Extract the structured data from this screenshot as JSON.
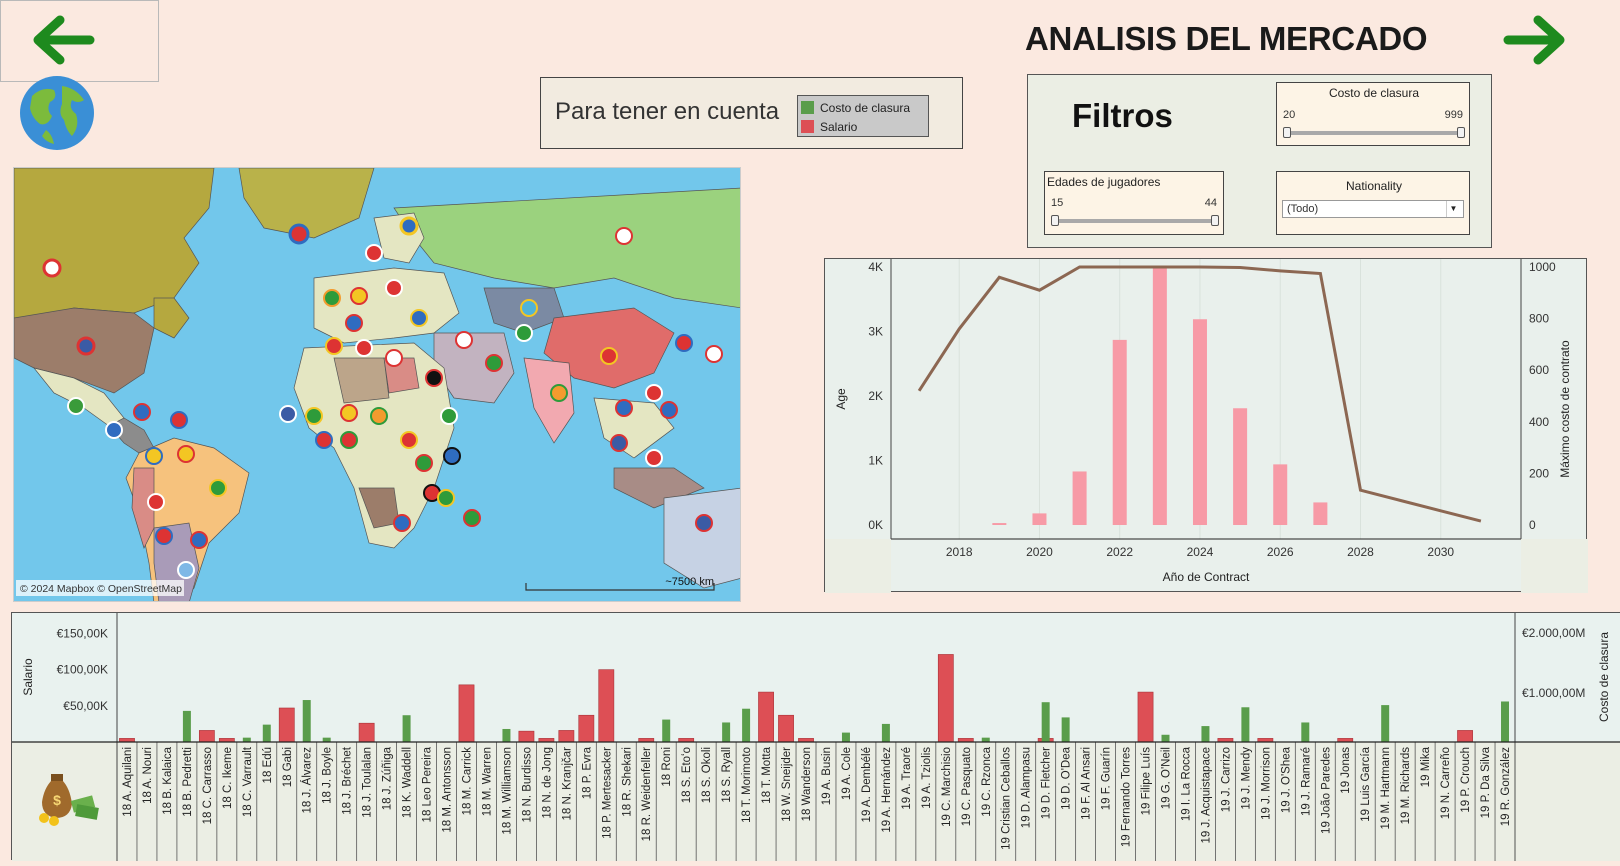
{
  "page": {
    "title": "ANALISIS DEL MERCADO",
    "back_icon": "arrow-left-icon",
    "forward_icon": "arrow-right-icon",
    "globe_icon": "globe-icon",
    "colors": {
      "green": "#5a9d4b",
      "red": "#dd4f55",
      "pink": "#f79aa6",
      "line": "#8c6752",
      "arrow": "#1e8a1e"
    }
  },
  "legend": {
    "title": "Para tener en cuenta",
    "items": [
      {
        "label": "Costo de clasura",
        "color": "#5a9d4b"
      },
      {
        "label": "Salario",
        "color": "#dd4f55"
      }
    ]
  },
  "filters": {
    "title": "Filtros",
    "costo": {
      "label": "Costo de clasura",
      "min": "20",
      "max": "999"
    },
    "edades": {
      "label": "Edades de jugadores",
      "min": "15",
      "max": "44"
    },
    "nationality": {
      "label": "Nationality",
      "value": "(Todo)"
    }
  },
  "map": {
    "attribution": "© 2024 Mapbox © OpenStreetMap",
    "scale": "~7500 km"
  },
  "chart_data": [
    {
      "type": "bar",
      "xlabel": "Año de Contract",
      "ylabel": "Age",
      "y2label": "Máximo costo de contrato",
      "x_ticks": [
        "2018",
        "2020",
        "2022",
        "2024",
        "2026",
        "2028",
        "2030"
      ],
      "y_ticks": [
        "0K",
        "1K",
        "2K",
        "3K",
        "4K"
      ],
      "y2_ticks": [
        "0",
        "200",
        "400",
        "600",
        "800",
        "1000"
      ],
      "ylim": [
        0,
        4000
      ],
      "y2lim": [
        0,
        1000
      ],
      "xlim": [
        2016.3,
        2032
      ],
      "series": [
        {
          "type": "bar",
          "x": [
            2019,
            2020,
            2021,
            2022,
            2023,
            2024,
            2025,
            2026,
            2027
          ],
          "values": [
            30,
            180,
            830,
            2870,
            4000,
            3190,
            1810,
            940,
            350
          ]
        },
        {
          "type": "line",
          "x": [
            2017,
            2018,
            2019,
            2020,
            2021,
            2022,
            2023,
            2024,
            2025,
            2026,
            2027,
            2028,
            2029,
            2030,
            2031
          ],
          "values": [
            520,
            760,
            960,
            910,
            1000,
            1000,
            1000,
            1000,
            998,
            985,
            975,
            135,
            95,
            55,
            15
          ]
        }
      ]
    },
    {
      "type": "bar",
      "ylabel": "Salario",
      "y2label": "Costo de clasura",
      "y_ticks": [
        "€150,00K",
        "€100,00K",
        "€50,00K"
      ],
      "y2_ticks": [
        "€2.000,00M",
        "€1.000,00M"
      ],
      "ylim": [
        0,
        170000
      ],
      "categories": [
        "18 A. Aquilani",
        "18 A. Nouri",
        "18 B. Kalaica",
        "18 B. Pedretti",
        "18 C. Carrasso",
        "18 C. Ikeme",
        "18 C. Varrault",
        "18 Edú",
        "18 Gabi",
        "18 J. Álvarez",
        "18 J. Boyle",
        "18 J. Bréchet",
        "18 J. Toulalan",
        "18 J. Zúñiga",
        "18 K. Waddell",
        "18 Leo Pereira",
        "18 M. Antonsson",
        "18 M. Carrick",
        "18 M. Warren",
        "18 M. Williamson",
        "18 N. Burdisso",
        "18 N. de Jong",
        "18 N. Kranjčar",
        "18 P. Evra",
        "18 P. Mertesacker",
        "18 R. Shekari",
        "18 R. Weidenfeller",
        "18 Roni",
        "18 S. Etoʻo",
        "18 S. Okoli",
        "18 S. Ryall",
        "18 T. Morimoto",
        "18 T. Motta",
        "18 W. Sneijder",
        "18 Wanderson",
        "19 A. Busin",
        "19 A. Cole",
        "19 A. Dembélé",
        "19 A. Hernández",
        "19 A. Traoré",
        "19 A. Tziolis",
        "19 C. Marchisio",
        "19 C. Pasquato",
        "19 C. Rzonca",
        "19 Cristian Ceballos",
        "19 D. Alampasu",
        "19 D. Fletcher",
        "19 D. O'Dea",
        "19 F. Al Ansari",
        "19 F. Guarín",
        "19 Fernando Torres",
        "19 Filipe Luís",
        "19 G. O'Neil",
        "19 I. La Rocca",
        "19 J. Acquistapace",
        "19 J. Carrizo",
        "19 J. Mendy",
        "19 J. Morrison",
        "19 J. O'Shea",
        "19 J. Ramaré",
        "19 João Paredes",
        "19 Jonas",
        "19 Luis García",
        "19 M. Hartmann",
        "19 M. Richards",
        "19 Mika",
        "19 N. Carreño",
        "19 P. Crouch",
        "19 P. Da Silva",
        "19 R. González"
      ],
      "series": [
        {
          "name": "Salario",
          "color": "#dd4f55",
          "values": [
            5000,
            0,
            0,
            0,
            16000,
            5000,
            0,
            0,
            47000,
            0,
            0,
            0,
            26000,
            0,
            0,
            0,
            0,
            79000,
            0,
            0,
            15000,
            5000,
            16000,
            37000,
            100000,
            0,
            5000,
            0,
            5000,
            0,
            0,
            0,
            69000,
            37000,
            5000,
            0,
            0,
            0,
            0,
            0,
            0,
            121000,
            5000,
            0,
            0,
            0,
            5000,
            0,
            0,
            0,
            0,
            69000,
            0,
            0,
            0,
            5000,
            0,
            5000,
            0,
            0,
            0,
            5000,
            0,
            0,
            0,
            0,
            0,
            16000,
            0,
            0
          ]
        },
        {
          "name": "Costo de clasura",
          "color": "#5a9d4b",
          "values": [
            0,
            0,
            0,
            43000,
            0,
            0,
            6000,
            24000,
            0,
            58000,
            6000,
            0,
            0,
            0,
            37000,
            0,
            0,
            0,
            0,
            18000,
            0,
            0,
            0,
            0,
            0,
            0,
            0,
            31000,
            0,
            0,
            27000,
            46000,
            0,
            0,
            0,
            0,
            13000,
            0,
            25000,
            0,
            0,
            0,
            0,
            6000,
            0,
            0,
            55000,
            34000,
            0,
            0,
            0,
            0,
            10000,
            0,
            22000,
            0,
            48000,
            0,
            0,
            27000,
            0,
            0,
            0,
            51000,
            0,
            0,
            0,
            0,
            0,
            56000
          ]
        }
      ]
    }
  ]
}
